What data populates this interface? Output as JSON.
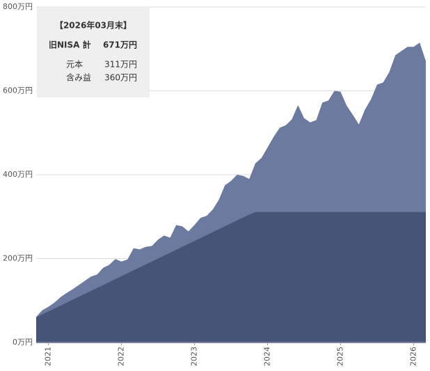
{
  "chart_data": {
    "type": "area",
    "x": [
      2020.833,
      2020.917,
      2021,
      2021.083,
      2021.167,
      2021.25,
      2021.333,
      2021.417,
      2021.5,
      2021.583,
      2021.667,
      2021.75,
      2021.833,
      2021.917,
      2022,
      2022.083,
      2022.167,
      2022.25,
      2022.333,
      2022.417,
      2022.5,
      2022.583,
      2022.667,
      2022.75,
      2022.833,
      2022.917,
      2023,
      2023.083,
      2023.167,
      2023.25,
      2023.333,
      2023.417,
      2023.5,
      2023.583,
      2023.667,
      2023.75,
      2023.833,
      2023.917,
      2024,
      2024.083,
      2024.167,
      2024.25,
      2024.333,
      2024.417,
      2024.5,
      2024.583,
      2024.667,
      2024.75,
      2024.833,
      2024.917,
      2025,
      2025.083,
      2025.167,
      2025.25,
      2025.333,
      2025.417,
      2025.5,
      2025.583,
      2025.667,
      2025.75,
      2025.833,
      2025.917,
      2026,
      2026.083,
      2026.167
    ],
    "series": [
      {
        "color": "#6b7a9e",
        "values": [
          61,
          77,
          85,
          95,
          108,
          118,
          127,
          137,
          147,
          157,
          162,
          178,
          185,
          199,
          193,
          198,
          225,
          222,
          228,
          230,
          245,
          255,
          250,
          280,
          277,
          265,
          280,
          297,
          302,
          317,
          340,
          375,
          385,
          400,
          397,
          390,
          427,
          440,
          465,
          490,
          512,
          518,
          532,
          566,
          535,
          525,
          530,
          572,
          577,
          600,
          598,
          565,
          543,
          520,
          555,
          580,
          615,
          620,
          645,
          685,
          695,
          705,
          705,
          715,
          671
        ]
      },
      {
        "color": "#465577",
        "values": [
          60,
          67,
          74,
          81,
          88,
          95,
          102,
          109,
          116,
          123,
          130,
          137,
          144,
          151,
          158,
          165,
          172,
          179,
          186,
          193,
          200,
          207,
          214,
          221,
          228,
          235,
          242,
          249,
          256,
          263,
          270,
          277,
          284,
          291,
          298,
          305,
          311,
          311,
          311,
          311,
          311,
          311,
          311,
          311,
          311,
          311,
          311,
          311,
          311,
          311,
          311,
          311,
          311,
          311,
          311,
          311,
          311,
          311,
          311,
          311,
          311,
          311,
          311,
          311,
          311
        ]
      }
    ],
    "xlim": [
      2020.833,
      2026.167
    ],
    "xticks": [
      2021,
      2022,
      2023,
      2024,
      2025,
      2026
    ],
    "ylim": [
      0,
      800
    ],
    "yticks": [
      {
        "value": 0,
        "label": "0万円"
      },
      {
        "value": 200,
        "label": "200万円"
      },
      {
        "value": 400,
        "label": "400万円"
      },
      {
        "value": 600,
        "label": "600万円"
      },
      {
        "value": 800,
        "label": "800万円"
      }
    ],
    "grid": true,
    "tooltip": {
      "date": "【2026年03月末】",
      "total_label": "旧NISA 計",
      "total_value": "671万円",
      "rows": [
        [
          "元本",
          "311万円"
        ],
        [
          "含み益",
          "360万円"
        ]
      ]
    }
  }
}
